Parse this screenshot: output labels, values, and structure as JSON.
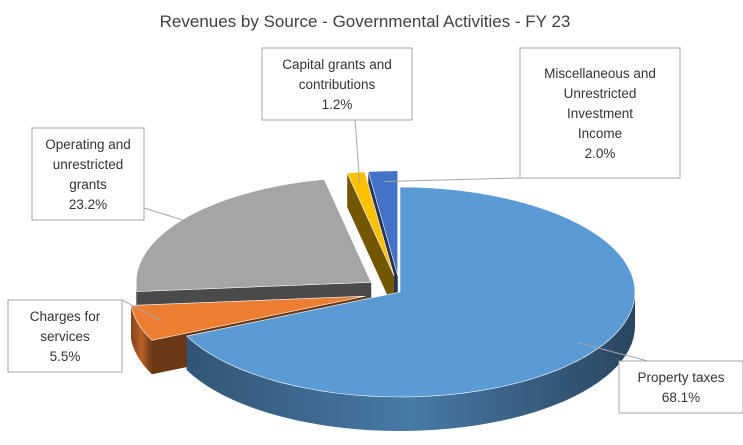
{
  "chart_data": {
    "type": "pie",
    "style": "3d-exploded",
    "title": "Revenues by Source - Governmental Activities - FY 23",
    "slices": [
      {
        "label": "Property taxes",
        "value": 68.1,
        "value_label": "68.1%",
        "color": "#5b9bd5",
        "exploded": false
      },
      {
        "label": "Charges for services",
        "value": 5.5,
        "value_label": "5.5%",
        "color": "#ed7d31",
        "exploded": true
      },
      {
        "label": "Operating and unrestricted grants",
        "value": 23.2,
        "value_label": "23.2%",
        "color": "#a5a5a5",
        "exploded": true
      },
      {
        "label": "Capital grants and contributions",
        "value": 1.2,
        "value_label": "1.2%",
        "color": "#ffc000",
        "exploded": true
      },
      {
        "label": "Miscellaneous and Unrestricted Investment Income",
        "value": 2.0,
        "value_label": "2.0%",
        "color": "#4472c4",
        "exploded": true
      }
    ],
    "label_text": [
      [
        "Property taxes",
        "68.1%"
      ],
      [
        "Charges for",
        "services",
        "5.5%"
      ],
      [
        "Operating and",
        "unrestricted",
        "grants",
        "23.2%"
      ],
      [
        "Capital grants and",
        "contributions",
        "1.2%"
      ],
      [
        "Miscellaneous and",
        "Unrestricted",
        "Investment",
        "Income",
        "2.0%"
      ]
    ]
  }
}
